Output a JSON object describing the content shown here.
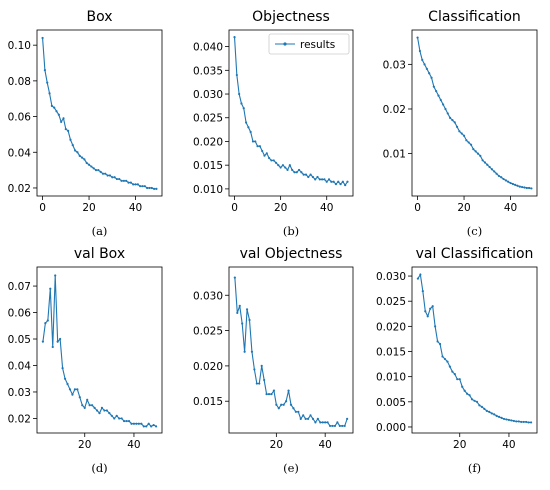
{
  "colors": {
    "series": "#1f77b4",
    "axis": "#000000",
    "legend_border": "#cccccc"
  },
  "chart_data": [
    {
      "type": "line",
      "title": "Box",
      "panel_label": "(a)",
      "xlim": [
        -2.4,
        51.4
      ],
      "ylim": [
        0.0155,
        0.1085
      ],
      "xticks": [
        0,
        20,
        40
      ],
      "yticks": [
        0.02,
        0.04,
        0.06,
        0.08,
        0.1
      ],
      "ytick_labels": [
        "0.02",
        "0.04",
        "0.06",
        "0.08",
        "0.10"
      ],
      "series": [
        {
          "x": [
            0,
            1,
            2,
            3,
            4,
            5,
            6,
            7,
            8,
            9,
            10,
            11,
            12,
            13,
            14,
            15,
            16,
            17,
            18,
            19,
            20,
            21,
            22,
            23,
            24,
            25,
            26,
            27,
            28,
            29,
            30,
            31,
            32,
            33,
            34,
            35,
            36,
            37,
            38,
            39,
            40,
            41,
            42,
            43,
            44,
            45,
            46,
            47,
            48,
            49
          ],
          "y": [
            0.104,
            0.086,
            0.079,
            0.073,
            0.066,
            0.065,
            0.063,
            0.061,
            0.057,
            0.059,
            0.053,
            0.052,
            0.047,
            0.044,
            0.041,
            0.04,
            0.038,
            0.037,
            0.036,
            0.034,
            0.033,
            0.032,
            0.031,
            0.03,
            0.03,
            0.029,
            0.028,
            0.028,
            0.027,
            0.027,
            0.026,
            0.026,
            0.025,
            0.025,
            0.024,
            0.024,
            0.024,
            0.023,
            0.023,
            0.022,
            0.022,
            0.022,
            0.021,
            0.021,
            0.021,
            0.02,
            0.02,
            0.02,
            0.0195,
            0.0195
          ]
        }
      ]
    },
    {
      "type": "line",
      "title": "Objectness",
      "panel_label": "(b)",
      "xlim": [
        -2.4,
        51.4
      ],
      "ylim": [
        0.0085,
        0.0435
      ],
      "xticks": [
        0,
        20,
        40
      ],
      "yticks": [
        0.01,
        0.015,
        0.02,
        0.025,
        0.03,
        0.035,
        0.04
      ],
      "ytick_labels": [
        "0.010",
        "0.015",
        "0.020",
        "0.025",
        "0.030",
        "0.035",
        "0.040"
      ],
      "legend": {
        "label": "results",
        "position": "upper right"
      },
      "series": [
        {
          "name": "results",
          "x": [
            0,
            1,
            2,
            3,
            4,
            5,
            6,
            7,
            8,
            9,
            10,
            11,
            12,
            13,
            14,
            15,
            16,
            17,
            18,
            19,
            20,
            21,
            22,
            23,
            24,
            25,
            26,
            27,
            28,
            29,
            30,
            31,
            32,
            33,
            34,
            35,
            36,
            37,
            38,
            39,
            40,
            41,
            42,
            43,
            44,
            45,
            46,
            47,
            48,
            49
          ],
          "y": [
            0.042,
            0.034,
            0.03,
            0.028,
            0.027,
            0.024,
            0.023,
            0.022,
            0.02,
            0.02,
            0.019,
            0.019,
            0.018,
            0.017,
            0.0175,
            0.0165,
            0.016,
            0.016,
            0.0155,
            0.015,
            0.0145,
            0.015,
            0.0145,
            0.014,
            0.015,
            0.014,
            0.0135,
            0.0135,
            0.014,
            0.0135,
            0.013,
            0.013,
            0.0125,
            0.013,
            0.0125,
            0.012,
            0.0125,
            0.012,
            0.012,
            0.012,
            0.0115,
            0.012,
            0.0115,
            0.0115,
            0.011,
            0.0115,
            0.011,
            0.0115,
            0.0108,
            0.0115
          ]
        }
      ]
    },
    {
      "type": "line",
      "title": "Classification",
      "panel_label": "(c)",
      "xlim": [
        -2.4,
        51.4
      ],
      "ylim": [
        0.0005,
        0.0377
      ],
      "xticks": [
        0,
        20,
        40
      ],
      "yticks": [
        0.01,
        0.02,
        0.03
      ],
      "ytick_labels": [
        "0.01",
        "0.02",
        "0.03"
      ],
      "series": [
        {
          "x": [
            0,
            1,
            2,
            3,
            4,
            5,
            6,
            7,
            8,
            9,
            10,
            11,
            12,
            13,
            14,
            15,
            16,
            17,
            18,
            19,
            20,
            21,
            22,
            23,
            24,
            25,
            26,
            27,
            28,
            29,
            30,
            31,
            32,
            33,
            34,
            35,
            36,
            37,
            38,
            39,
            40,
            41,
            42,
            43,
            44,
            45,
            46,
            47,
            48,
            49
          ],
          "y": [
            0.036,
            0.033,
            0.031,
            0.03,
            0.029,
            0.028,
            0.027,
            0.025,
            0.024,
            0.023,
            0.022,
            0.021,
            0.02,
            0.019,
            0.018,
            0.0175,
            0.017,
            0.016,
            0.015,
            0.0145,
            0.014,
            0.013,
            0.0125,
            0.012,
            0.011,
            0.0105,
            0.01,
            0.0095,
            0.0085,
            0.008,
            0.0075,
            0.007,
            0.0065,
            0.006,
            0.0055,
            0.005,
            0.0047,
            0.0043,
            0.004,
            0.0037,
            0.0034,
            0.0032,
            0.003,
            0.0028,
            0.0026,
            0.0025,
            0.0024,
            0.0023,
            0.0023,
            0.0022
          ]
        }
      ]
    },
    {
      "type": "line",
      "title": "val Box",
      "panel_label": "(d)",
      "xlim": [
        0.6,
        51.4
      ],
      "ylim": [
        0.0145,
        0.0772
      ],
      "xticks": [
        20,
        40
      ],
      "yticks": [
        0.02,
        0.03,
        0.04,
        0.05,
        0.06,
        0.07
      ],
      "ytick_labels": [
        "0.02",
        "0.03",
        "0.04",
        "0.05",
        "0.06",
        "0.07"
      ],
      "series": [
        {
          "x": [
            3,
            4,
            5,
            6,
            7,
            8,
            9,
            10,
            11,
            12,
            13,
            14,
            15,
            16,
            17,
            18,
            19,
            20,
            21,
            22,
            23,
            24,
            25,
            26,
            27,
            28,
            29,
            30,
            31,
            32,
            33,
            34,
            35,
            36,
            37,
            38,
            39,
            40,
            41,
            42,
            43,
            44,
            45,
            46,
            47,
            48,
            49
          ],
          "y": [
            0.049,
            0.056,
            0.057,
            0.069,
            0.047,
            0.074,
            0.049,
            0.05,
            0.039,
            0.035,
            0.033,
            0.031,
            0.029,
            0.031,
            0.031,
            0.028,
            0.025,
            0.024,
            0.027,
            0.025,
            0.025,
            0.024,
            0.023,
            0.022,
            0.024,
            0.023,
            0.023,
            0.022,
            0.021,
            0.02,
            0.021,
            0.02,
            0.02,
            0.019,
            0.019,
            0.019,
            0.018,
            0.018,
            0.018,
            0.018,
            0.018,
            0.017,
            0.017,
            0.018,
            0.017,
            0.0175,
            0.017
          ]
        }
      ]
    },
    {
      "type": "line",
      "title": "val Objectness",
      "panel_label": "(e)",
      "xlim": [
        0.6,
        51.4
      ],
      "ylim": [
        0.0105,
        0.034
      ],
      "xticks": [
        20,
        40
      ],
      "yticks": [
        0.015,
        0.02,
        0.025,
        0.03
      ],
      "ytick_labels": [
        "0.015",
        "0.020",
        "0.025",
        "0.030"
      ],
      "series": [
        {
          "x": [
            3,
            4,
            5,
            6,
            7,
            8,
            9,
            10,
            11,
            12,
            13,
            14,
            15,
            16,
            17,
            18,
            19,
            20,
            21,
            22,
            23,
            24,
            25,
            26,
            27,
            28,
            29,
            30,
            31,
            32,
            33,
            34,
            35,
            36,
            37,
            38,
            39,
            40,
            41,
            42,
            43,
            44,
            45,
            46,
            47,
            48,
            49
          ],
          "y": [
            0.0325,
            0.0275,
            0.0285,
            0.026,
            0.022,
            0.028,
            0.0265,
            0.022,
            0.0195,
            0.0175,
            0.0175,
            0.02,
            0.018,
            0.016,
            0.016,
            0.016,
            0.0165,
            0.0145,
            0.014,
            0.0145,
            0.0145,
            0.015,
            0.0165,
            0.0145,
            0.014,
            0.0135,
            0.0135,
            0.0125,
            0.013,
            0.0125,
            0.0125,
            0.013,
            0.0125,
            0.012,
            0.0125,
            0.012,
            0.012,
            0.012,
            0.012,
            0.0115,
            0.0115,
            0.0115,
            0.012,
            0.0115,
            0.0115,
            0.0115,
            0.0125
          ]
        }
      ]
    },
    {
      "type": "line",
      "title": "val Classification",
      "panel_label": "(f)",
      "xlim": [
        0.6,
        51.4
      ],
      "ylim": [
        -0.0012,
        0.0318
      ],
      "xticks": [
        20,
        40
      ],
      "yticks": [
        0.0,
        0.005,
        0.01,
        0.015,
        0.02,
        0.025,
        0.03
      ],
      "ytick_labels": [
        "0.000",
        "0.005",
        "0.010",
        "0.015",
        "0.020",
        "0.025",
        "0.030"
      ],
      "series": [
        {
          "x": [
            3,
            4,
            5,
            6,
            7,
            8,
            9,
            10,
            11,
            12,
            13,
            14,
            15,
            16,
            17,
            18,
            19,
            20,
            21,
            22,
            23,
            24,
            25,
            26,
            27,
            28,
            29,
            30,
            31,
            32,
            33,
            34,
            35,
            36,
            37,
            38,
            39,
            40,
            41,
            42,
            43,
            44,
            45,
            46,
            47,
            48,
            49
          ],
          "y": [
            0.0295,
            0.0303,
            0.027,
            0.023,
            0.022,
            0.0235,
            0.024,
            0.02,
            0.017,
            0.0165,
            0.014,
            0.0135,
            0.013,
            0.012,
            0.011,
            0.0105,
            0.0095,
            0.0095,
            0.008,
            0.0072,
            0.0066,
            0.0063,
            0.0055,
            0.0052,
            0.005,
            0.0043,
            0.004,
            0.0036,
            0.0032,
            0.003,
            0.0027,
            0.0025,
            0.0022,
            0.002,
            0.0018,
            0.0016,
            0.0015,
            0.0014,
            0.0013,
            0.0012,
            0.0011,
            0.0011,
            0.001,
            0.001,
            0.001,
            0.0009,
            0.0009
          ]
        }
      ]
    }
  ]
}
